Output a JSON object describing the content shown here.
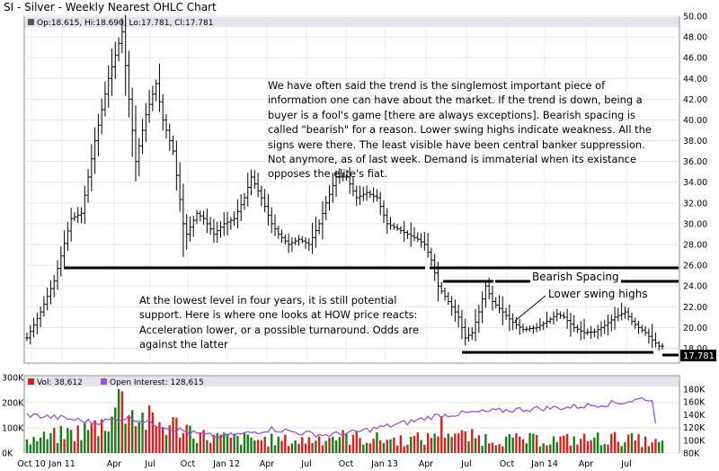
{
  "chart_data": {
    "type": "ohlc",
    "title": "SI - Silver - Weekly Nearest OHLC Chart",
    "legend_price": "Op:18.615, Hi:18.690, Lo:17.781, Cl:17.781",
    "last_price_label": "17.781",
    "price_ylim": [
      17.0,
      50.0
    ],
    "price_ticks": [
      "18.00",
      "20.00",
      "22.00",
      "24.00",
      "26.00",
      "28.00",
      "30.00",
      "32.00",
      "34.00",
      "36.00",
      "38.00",
      "40.00",
      "42.00",
      "44.00",
      "46.00",
      "48.00",
      "50.00"
    ],
    "x_ticks": [
      "Oct 10",
      "Jan 11",
      "Apr",
      "Jul",
      "Oct",
      "Jan 12",
      "Apr",
      "Jul",
      "Oct",
      "Jan 13",
      "Apr",
      "Jul",
      "Oct",
      "Jan 14",
      "Apr",
      "Jul"
    ],
    "price_path": [
      [
        0,
        19.0
      ],
      [
        4,
        21.5
      ],
      [
        8,
        24.5
      ],
      [
        13,
        30.5
      ],
      [
        16,
        31.0
      ],
      [
        20,
        38.0
      ],
      [
        24,
        44.0
      ],
      [
        28,
        48.5
      ],
      [
        30,
        42.0
      ],
      [
        32,
        36.0
      ],
      [
        35,
        40.5
      ],
      [
        38,
        43.5
      ],
      [
        40,
        40.0
      ],
      [
        43,
        37.0
      ],
      [
        46,
        30.0
      ],
      [
        47,
        29.0
      ],
      [
        50,
        31.0
      ],
      [
        52,
        30.5
      ],
      [
        55,
        29.0
      ],
      [
        58,
        30.0
      ],
      [
        61,
        30.5
      ],
      [
        64,
        32.5
      ],
      [
        66,
        34.5
      ],
      [
        69,
        32.5
      ],
      [
        72,
        30.0
      ],
      [
        74,
        29.0
      ],
      [
        77,
        28.0
      ],
      [
        80,
        28.5
      ],
      [
        83,
        28.0
      ],
      [
        86,
        30.0
      ],
      [
        88,
        32.0
      ],
      [
        91,
        34.5
      ],
      [
        94,
        34.5
      ],
      [
        97,
        32.5
      ],
      [
        100,
        33.0
      ],
      [
        103,
        32.5
      ],
      [
        106,
        30.0
      ],
      [
        109,
        29.5
      ],
      [
        112,
        29.0
      ],
      [
        115,
        28.5
      ],
      [
        117,
        28.0
      ],
      [
        119,
        26.5
      ],
      [
        121,
        24.0
      ],
      [
        124,
        22.5
      ],
      [
        127,
        21.0
      ],
      [
        129,
        19.0
      ],
      [
        131,
        19.5
      ],
      [
        133,
        21.5
      ],
      [
        135,
        24.0
      ],
      [
        137,
        22.5
      ],
      [
        140,
        21.5
      ],
      [
        143,
        20.5
      ],
      [
        146,
        19.8
      ],
      [
        150,
        20.0
      ],
      [
        154,
        20.8
      ],
      [
        156,
        21.3
      ],
      [
        158,
        21.0
      ],
      [
        161,
        20.0
      ],
      [
        164,
        19.5
      ],
      [
        167,
        19.6
      ],
      [
        170,
        20.2
      ],
      [
        173,
        21.0
      ],
      [
        176,
        21.5
      ],
      [
        178,
        20.6
      ],
      [
        180,
        20.0
      ],
      [
        182,
        19.5
      ],
      [
        184,
        18.8
      ],
      [
        186,
        18.2
      ]
    ],
    "volume_label": "Vol: 38,612",
    "open_interest_label": "Open Interest: 128,615",
    "volume_ylim": [
      0,
      300000
    ],
    "volume_ticks": [
      "0K",
      "100K",
      "200K",
      "300K"
    ],
    "oi_ylim": [
      80000,
      180000
    ],
    "oi_ticks": [
      "80K",
      "100K",
      "120K",
      "140K",
      "160K",
      "180K"
    ],
    "open_interest_path": [
      [
        0,
        140000
      ],
      [
        10,
        135000
      ],
      [
        20,
        128000
      ],
      [
        30,
        136000
      ],
      [
        40,
        122000
      ],
      [
        48,
        112000
      ],
      [
        56,
        105000
      ],
      [
        64,
        110000
      ],
      [
        72,
        118000
      ],
      [
        80,
        112000
      ],
      [
        88,
        108000
      ],
      [
        96,
        112000
      ],
      [
        104,
        120000
      ],
      [
        112,
        128000
      ],
      [
        120,
        138000
      ],
      [
        128,
        142000
      ],
      [
        136,
        145000
      ],
      [
        144,
        148000
      ],
      [
        152,
        150000
      ],
      [
        160,
        152000
      ],
      [
        168,
        156000
      ],
      [
        176,
        160000
      ],
      [
        182,
        166000
      ],
      [
        184,
        160000
      ],
      [
        185,
        130000
      ]
    ],
    "volume_path": [
      [
        0,
        50000
      ],
      [
        8,
        70000
      ],
      [
        16,
        90000
      ],
      [
        22,
        120000
      ],
      [
        26,
        180000
      ],
      [
        28,
        240000
      ],
      [
        30,
        170000
      ],
      [
        38,
        120000
      ],
      [
        46,
        110000
      ],
      [
        52,
        70000
      ],
      [
        60,
        60000
      ],
      [
        70,
        55000
      ],
      [
        80,
        50000
      ],
      [
        90,
        70000
      ],
      [
        100,
        60000
      ],
      [
        110,
        55000
      ],
      [
        118,
        60000
      ],
      [
        122,
        110000
      ],
      [
        128,
        70000
      ],
      [
        136,
        60000
      ],
      [
        144,
        55000
      ],
      [
        152,
        55000
      ],
      [
        160,
        55000
      ],
      [
        168,
        60000
      ],
      [
        176,
        60000
      ],
      [
        186,
        40000
      ]
    ]
  },
  "annotations": {
    "trend_text": "We have often said the trend is the singlemost important piece of information one can have about the market.  If the trend is down, being a buyer is a fool's game [there are always exceptions].  Bearish spacing is called \"bearish\" for a reason.  Lower swing highs indicate weakness.  All the signs were there.  The least visible have been central banker suppression.  Not anymore, as of last week.  Demand is immaterial when its existance opposes the elite's fiat.",
    "support_text": "At the lowest level in four years, it is still potential support.  Here is where one looks at HOW price reacts: Acceleration lower, or a possible turnaround.  Odds are against the latter",
    "bearish_spacing": "Bearish Spacing",
    "lower_swing_highs": "Lower swing highs"
  },
  "colors": {
    "up_bar": "#1a7a1a",
    "down_bar": "#d42020",
    "price_bar": "#000000",
    "open_interest": "#9955cc",
    "legend_band": "#e4e4ee",
    "grid": "#c8c8c8"
  }
}
